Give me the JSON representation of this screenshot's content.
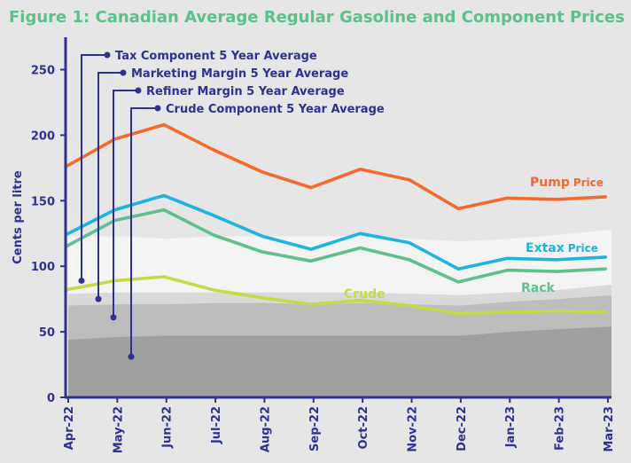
{
  "title": "Figure 1: Canadian Average Regular Gasoline and Component Prices",
  "colors": {
    "background": "#e6e6e6",
    "title": "#5cc08a",
    "axis": "#2e3192",
    "pump": "#f26a2e",
    "extax": "#1fb3e0",
    "rack": "#5fbf8f",
    "crude": "#c8d946",
    "band_tax": "#f4f4f4",
    "band_marketing": "#d9d9d9",
    "band_refiner": "#bdbdbd",
    "band_crude": "#9f9f9f"
  },
  "chart_data": {
    "type": "line",
    "title": "Figure 1: Canadian Average Regular Gasoline and Component Prices",
    "xlabel": "",
    "ylabel": "Cents per litre",
    "ylim": [
      0,
      275
    ],
    "yticks": [
      0,
      50,
      100,
      150,
      200,
      250
    ],
    "categories": [
      "Apr-22",
      "May-22",
      "Jun-22",
      "Jul-22",
      "Aug-22",
      "Sep-22",
      "Oct-22",
      "Nov-22",
      "Dec-22",
      "Jan-23",
      "Feb-23",
      "Mar-23"
    ],
    "x_start_offset": -0.05,
    "series": [
      {
        "name": "Pump Price",
        "label_main": "Pump",
        "label_sub": "Price",
        "color_key": "pump",
        "values": [
          176,
          197,
          208,
          189,
          172,
          160,
          174,
          166,
          144,
          152,
          151,
          153
        ]
      },
      {
        "name": "Extax Price",
        "label_main": "Extax",
        "label_sub": "Price",
        "color_key": "extax",
        "values": [
          124,
          143,
          154,
          139,
          123,
          113,
          125,
          118,
          98,
          106,
          105,
          107
        ]
      },
      {
        "name": "Rack",
        "label_main": "Rack",
        "label_sub": "",
        "color_key": "rack",
        "values": [
          115,
          135,
          143,
          124,
          111,
          104,
          114,
          105,
          88,
          97,
          96,
          98
        ]
      },
      {
        "name": "Crude",
        "label_main": "Crude",
        "label_sub": "",
        "color_key": "crude",
        "values": [
          82,
          89,
          92,
          82,
          76,
          71,
          74,
          70,
          64,
          65,
          66,
          65
        ]
      }
    ],
    "bands": [
      {
        "name": "Tax Component 5 Year Average",
        "color_key": "band_tax",
        "top": [
          123,
          123,
          121,
          123,
          123,
          123,
          123,
          121,
          119,
          121,
          124,
          128
        ]
      },
      {
        "name": "Marketing Margin 5 Year Average",
        "color_key": "band_marketing",
        "top": [
          79,
          80,
          80,
          80,
          80,
          80,
          80,
          79,
          78,
          80,
          82,
          86
        ]
      },
      {
        "name": "Refiner Margin 5 Year Average",
        "color_key": "band_refiner",
        "top": [
          70,
          71,
          71,
          72,
          72,
          71,
          72,
          71,
          70,
          73,
          75,
          78
        ]
      },
      {
        "name": "Crude Component 5 Year Average",
        "color_key": "band_crude",
        "top": [
          44,
          46,
          47,
          47,
          47,
          47,
          47,
          47,
          47,
          50,
          52,
          54
        ]
      }
    ],
    "annotations": [
      {
        "text": "Tax Component 5 Year Average",
        "point_value": 89
      },
      {
        "text": "Marketing Margin 5 Year Average",
        "point_value": 75
      },
      {
        "text": "Refiner Margin 5 Year Average",
        "point_value": 61
      },
      {
        "text": "Crude Component 5 Year Average",
        "point_value": 31
      }
    ],
    "grid": false,
    "legend": "inline"
  }
}
